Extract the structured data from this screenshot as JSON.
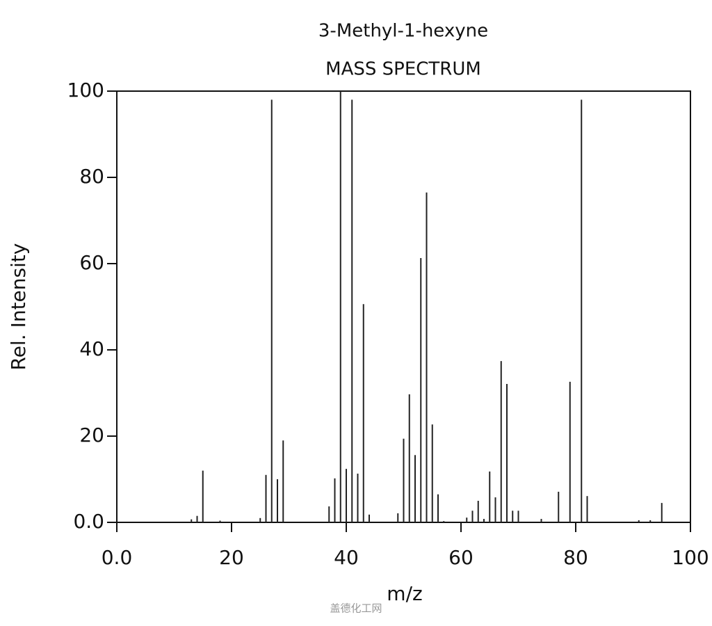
{
  "chart_data": {
    "type": "stem",
    "title": "3-Methyl-1-hexyne",
    "subtitle": "MASS SPECTRUM",
    "xlabel": "m/z",
    "ylabel": "Rel. Intensity",
    "watermark": "盖德化工网",
    "color": "#222222",
    "x": [
      13,
      14,
      15,
      18,
      25,
      26,
      27,
      28,
      29,
      37,
      38,
      39,
      40,
      41,
      42,
      43,
      44,
      49,
      50,
      51,
      52,
      53,
      54,
      55,
      56,
      57,
      61,
      62,
      63,
      64,
      65,
      66,
      67,
      68,
      69,
      70,
      74,
      77,
      79,
      81,
      82,
      91,
      93,
      95
    ],
    "values": [
      0.7,
      1.5,
      12,
      0.4,
      1,
      11,
      98,
      10,
      19,
      3.7,
      10.2,
      100,
      12.4,
      98,
      11.3,
      50.6,
      1.8,
      2.1,
      19.4,
      29.7,
      15.6,
      61.3,
      76.5,
      22.7,
      6.5,
      0.3,
      1.1,
      2.7,
      5,
      0.8,
      11.8,
      5.8,
      37.4,
      32.1,
      2.7,
      2.7,
      0.8,
      7.1,
      32.6,
      98,
      6.1,
      0.5,
      0.5,
      4.5
    ],
    "xlim": [
      0,
      100
    ],
    "ylim": [
      0,
      100
    ],
    "xticks": [
      {
        "value": 0,
        "label": "0.0"
      },
      20,
      40,
      60,
      80,
      100
    ],
    "yticks": [
      {
        "value": 0,
        "label": "0.0"
      },
      20,
      40,
      60,
      80,
      100
    ]
  }
}
